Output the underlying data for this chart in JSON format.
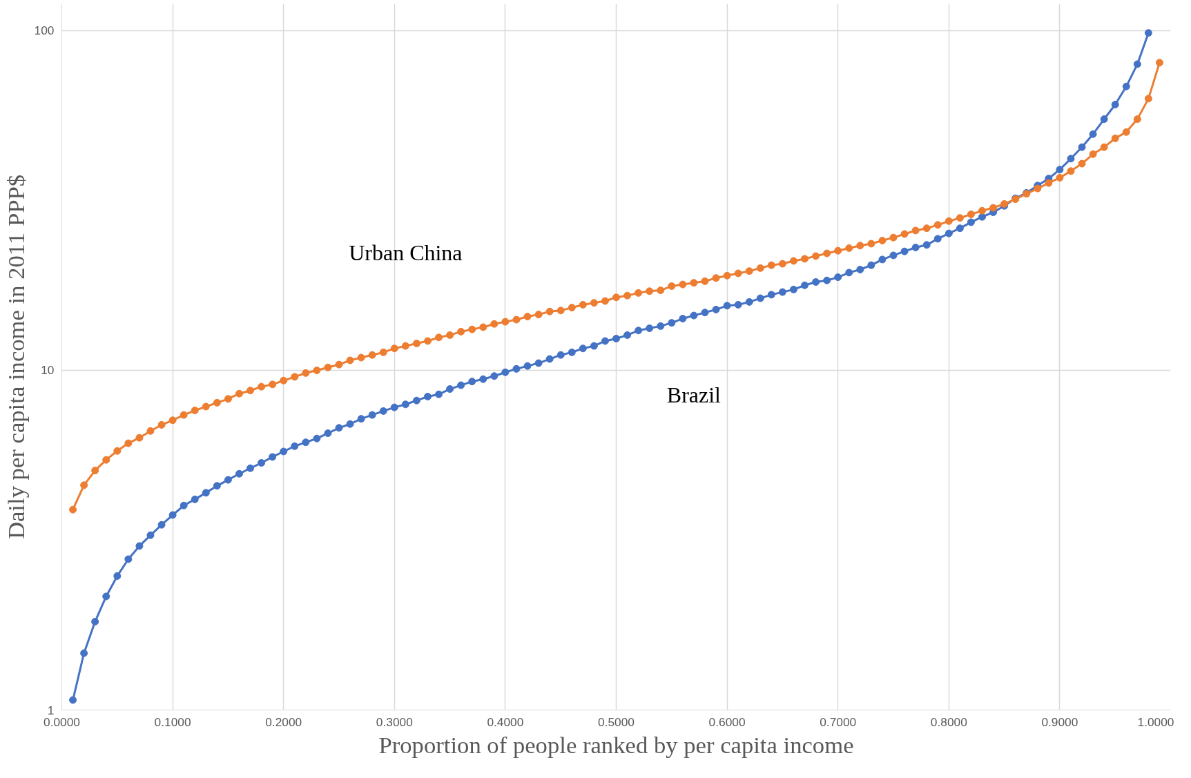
{
  "chart_data": {
    "type": "line",
    "xlabel": "Proportion of people ranked by per capita income",
    "ylabel": "Daily per capita income in 2011 PPP$",
    "log": "y",
    "grid": true,
    "marker": "circle",
    "line_style": "solid",
    "xlim": [
      0,
      1
    ],
    "ylim": [
      1,
      120
    ],
    "xticks": [
      {
        "value": 0,
        "label": "0.0000"
      },
      {
        "value": 0.1,
        "label": "0.1000"
      },
      {
        "value": 0.2,
        "label": "0.2000"
      },
      {
        "value": 0.3,
        "label": "0.3000"
      },
      {
        "value": 0.4,
        "label": "0.4000"
      },
      {
        "value": 0.5,
        "label": "0.5000"
      },
      {
        "value": 0.6,
        "label": "0.6000"
      },
      {
        "value": 0.7,
        "label": "0.7000"
      },
      {
        "value": 0.8,
        "label": "0.8000"
      },
      {
        "value": 0.9,
        "label": "0.9000"
      },
      {
        "value": 1,
        "label": "1.0000"
      }
    ],
    "yticks": [
      1,
      10,
      100
    ],
    "series": [
      {
        "name": "Brazil",
        "color": "#4472c4",
        "x": [
          0.01,
          0.02,
          0.03,
          0.04,
          0.05,
          0.06,
          0.07,
          0.08,
          0.09,
          0.1,
          0.11,
          0.12,
          0.13,
          0.14,
          0.15,
          0.16,
          0.17,
          0.18,
          0.19,
          0.2,
          0.21,
          0.22,
          0.23,
          0.24,
          0.25,
          0.26,
          0.27,
          0.28,
          0.29,
          0.3,
          0.31,
          0.32,
          0.33,
          0.34,
          0.35,
          0.36,
          0.37,
          0.38,
          0.39,
          0.4,
          0.41,
          0.42,
          0.43,
          0.44,
          0.45,
          0.46,
          0.47,
          0.48,
          0.49,
          0.5,
          0.51,
          0.52,
          0.53,
          0.54,
          0.55,
          0.56,
          0.57,
          0.58,
          0.59,
          0.6,
          0.61,
          0.62,
          0.63,
          0.64,
          0.65,
          0.66,
          0.67,
          0.68,
          0.69,
          0.7,
          0.71,
          0.72,
          0.73,
          0.74,
          0.75,
          0.76,
          0.77,
          0.78,
          0.79,
          0.8,
          0.81,
          0.82,
          0.83,
          0.84,
          0.85,
          0.86,
          0.87,
          0.88,
          0.89,
          0.9,
          0.91,
          0.92,
          0.93,
          0.94,
          0.95,
          0.96,
          0.97,
          0.98
        ],
        "values": [
          1.07,
          1.47,
          1.82,
          2.16,
          2.48,
          2.78,
          3.04,
          3.27,
          3.51,
          3.75,
          4.0,
          4.17,
          4.36,
          4.57,
          4.76,
          4.96,
          5.15,
          5.34,
          5.56,
          5.77,
          5.98,
          6.14,
          6.3,
          6.53,
          6.77,
          6.95,
          7.2,
          7.39,
          7.59,
          7.78,
          7.94,
          8.15,
          8.37,
          8.5,
          8.81,
          9.04,
          9.27,
          9.42,
          9.62,
          9.87,
          10.1,
          10.3,
          10.5,
          10.8,
          11.1,
          11.3,
          11.6,
          11.8,
          12.2,
          12.4,
          12.7,
          13.1,
          13.3,
          13.5,
          13.8,
          14.2,
          14.5,
          14.8,
          15.1,
          15.5,
          15.6,
          15.9,
          16.3,
          16.7,
          17.0,
          17.3,
          17.8,
          18.2,
          18.4,
          18.8,
          19.4,
          19.8,
          20.4,
          21.2,
          21.8,
          22.4,
          23.0,
          23.4,
          24.4,
          25.3,
          26.2,
          27.3,
          28.3,
          29.2,
          30.5,
          32.1,
          33.3,
          35.0,
          36.7,
          39.0,
          42.0,
          45.4,
          49.6,
          54.9,
          60.6,
          68.5,
          79.7,
          98.5
        ]
      },
      {
        "name": "Urban China",
        "color": "#ed7d31",
        "x": [
          0.01,
          0.02,
          0.03,
          0.04,
          0.05,
          0.06,
          0.07,
          0.08,
          0.09,
          0.1,
          0.11,
          0.12,
          0.13,
          0.14,
          0.15,
          0.16,
          0.17,
          0.18,
          0.19,
          0.2,
          0.21,
          0.22,
          0.23,
          0.24,
          0.25,
          0.26,
          0.27,
          0.28,
          0.29,
          0.3,
          0.31,
          0.32,
          0.33,
          0.34,
          0.35,
          0.36,
          0.37,
          0.38,
          0.39,
          0.4,
          0.41,
          0.42,
          0.43,
          0.44,
          0.45,
          0.46,
          0.47,
          0.48,
          0.49,
          0.5,
          0.51,
          0.52,
          0.53,
          0.54,
          0.55,
          0.56,
          0.57,
          0.58,
          0.59,
          0.6,
          0.61,
          0.62,
          0.63,
          0.64,
          0.65,
          0.66,
          0.67,
          0.68,
          0.69,
          0.7,
          0.71,
          0.72,
          0.73,
          0.74,
          0.75,
          0.76,
          0.77,
          0.78,
          0.79,
          0.8,
          0.81,
          0.82,
          0.83,
          0.84,
          0.85,
          0.86,
          0.87,
          0.88,
          0.89,
          0.9,
          0.91,
          0.92,
          0.93,
          0.94,
          0.95,
          0.96,
          0.97,
          0.98,
          0.99
        ],
        "values": [
          3.89,
          4.59,
          5.07,
          5.45,
          5.79,
          6.1,
          6.33,
          6.63,
          6.91,
          7.13,
          7.39,
          7.62,
          7.82,
          8.03,
          8.24,
          8.54,
          8.72,
          8.95,
          9.09,
          9.33,
          9.57,
          9.82,
          10.0,
          10.2,
          10.4,
          10.7,
          10.9,
          11.1,
          11.3,
          11.6,
          11.8,
          12.0,
          12.2,
          12.5,
          12.7,
          13.0,
          13.2,
          13.4,
          13.7,
          13.9,
          14.1,
          14.4,
          14.6,
          14.9,
          15.0,
          15.3,
          15.6,
          15.8,
          16.0,
          16.4,
          16.6,
          16.9,
          17.1,
          17.2,
          17.7,
          17.9,
          18.1,
          18.3,
          18.7,
          19.0,
          19.3,
          19.6,
          20.0,
          20.4,
          20.6,
          21.0,
          21.3,
          21.7,
          22.1,
          22.5,
          22.9,
          23.3,
          23.6,
          24.1,
          24.6,
          25.2,
          25.8,
          26.2,
          26.8,
          27.5,
          28.1,
          28.8,
          29.5,
          30.1,
          30.9,
          31.9,
          33.1,
          34.3,
          35.6,
          36.9,
          38.6,
          40.6,
          43.3,
          45.4,
          48.2,
          50.3,
          54.9,
          63.1,
          80.5
        ]
      }
    ]
  }
}
